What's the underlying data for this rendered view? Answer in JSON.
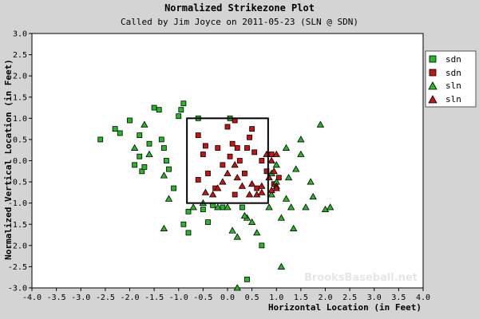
{
  "chart_data": {
    "type": "scatter",
    "title": "Normalized Strikezone Plot",
    "subtitle": "Called by Jim Joyce on 2011-05-23 (SLN @ SDN)",
    "xlabel": "Horizontal Location (in Feet)",
    "ylabel": "Normalized Vertical Location (in Feet)",
    "xlim": [
      -4.0,
      4.0
    ],
    "ylim": [
      -3.0,
      3.0
    ],
    "x_ticks": [
      "-4.0",
      "-3.5",
      "-3.0",
      "-2.5",
      "-2.0",
      "-1.5",
      "-1.0",
      "-0.5",
      "0.0",
      "0.5",
      "1.0",
      "1.5",
      "2.0",
      "2.5",
      "3.0",
      "3.5",
      "4.0"
    ],
    "y_ticks": [
      "3.0",
      "2.5",
      "2.0",
      "1.5",
      "1.0",
      "0.5",
      "0.0",
      "-0.5",
      "-1.0",
      "-1.5",
      "-2.0",
      "-2.5",
      "-3.0"
    ],
    "strike_zone": {
      "x": [
        -0.83,
        0.83
      ],
      "y": [
        -1.0,
        1.0
      ]
    },
    "grid": false,
    "legend_position": "top-right",
    "watermark": "BrooksBaseball.net",
    "series": [
      {
        "name": "sdn",
        "marker": "square",
        "color": "#22bb22",
        "points": [
          [
            -2.6,
            0.5
          ],
          [
            -2.3,
            0.75
          ],
          [
            -2.2,
            0.65
          ],
          [
            -2.0,
            0.95
          ],
          [
            -1.9,
            -0.1
          ],
          [
            -1.8,
            0.6
          ],
          [
            -1.8,
            0.1
          ],
          [
            -1.75,
            -0.25
          ],
          [
            -1.7,
            -0.15
          ],
          [
            -1.6,
            0.4
          ],
          [
            -1.5,
            1.25
          ],
          [
            -1.4,
            1.2
          ],
          [
            -1.35,
            0.5
          ],
          [
            -1.3,
            0.3
          ],
          [
            -1.25,
            0.0
          ],
          [
            -1.2,
            -0.2
          ],
          [
            -1.1,
            -0.65
          ],
          [
            -1.0,
            1.05
          ],
          [
            -0.95,
            1.2
          ],
          [
            -0.9,
            -1.5
          ],
          [
            -0.8,
            -1.7
          ],
          [
            -0.8,
            -1.2
          ],
          [
            -0.5,
            -1.15
          ],
          [
            -0.4,
            -1.45
          ],
          [
            -0.3,
            -1.05
          ],
          [
            -0.1,
            -1.1
          ],
          [
            0.05,
            1.0
          ],
          [
            0.3,
            -1.1
          ],
          [
            0.4,
            -2.8
          ],
          [
            0.7,
            -2.0
          ],
          [
            -0.9,
            1.35
          ],
          [
            -0.6,
            1.0
          ]
        ]
      },
      {
        "name": "sdn",
        "marker": "square",
        "color": "#cc1111",
        "points": [
          [
            -0.6,
            0.6
          ],
          [
            -0.5,
            0.15
          ],
          [
            -0.45,
            0.35
          ],
          [
            -0.4,
            -0.3
          ],
          [
            -0.2,
            0.3
          ],
          [
            -0.1,
            -0.1
          ],
          [
            0.0,
            0.8
          ],
          [
            0.05,
            0.1
          ],
          [
            0.1,
            0.4
          ],
          [
            0.15,
            0.95
          ],
          [
            0.2,
            0.3
          ],
          [
            0.25,
            0.0
          ],
          [
            0.35,
            -0.3
          ],
          [
            0.4,
            0.3
          ],
          [
            0.45,
            0.55
          ],
          [
            0.5,
            0.75
          ],
          [
            0.55,
            0.2
          ],
          [
            0.6,
            -0.65
          ],
          [
            0.7,
            0.0
          ],
          [
            0.8,
            -0.25
          ],
          [
            0.9,
            0.15
          ],
          [
            0.95,
            -0.55
          ],
          [
            1.05,
            -0.4
          ],
          [
            -0.6,
            -0.45
          ],
          [
            -0.25,
            -0.65
          ],
          [
            0.15,
            -0.8
          ]
        ]
      },
      {
        "name": "sln",
        "marker": "triangle",
        "color": "#22bb22",
        "points": [
          [
            -1.9,
            0.3
          ],
          [
            -1.7,
            0.85
          ],
          [
            -1.6,
            0.15
          ],
          [
            -1.3,
            -0.35
          ],
          [
            -1.2,
            -0.9
          ],
          [
            -1.3,
            -1.6
          ],
          [
            -0.7,
            -1.1
          ],
          [
            -0.5,
            -1.0
          ],
          [
            -0.2,
            -1.1
          ],
          [
            0.0,
            -1.1
          ],
          [
            0.1,
            -1.65
          ],
          [
            0.2,
            -1.8
          ],
          [
            0.4,
            -1.35
          ],
          [
            0.5,
            -1.45
          ],
          [
            0.6,
            -1.7
          ],
          [
            0.9,
            -0.8
          ],
          [
            1.0,
            -0.5
          ],
          [
            1.1,
            -1.35
          ],
          [
            1.2,
            -0.9
          ],
          [
            1.3,
            -1.1
          ],
          [
            1.4,
            -0.2
          ],
          [
            1.5,
            0.5
          ],
          [
            1.6,
            -1.1
          ],
          [
            1.7,
            -0.5
          ],
          [
            1.75,
            -0.85
          ],
          [
            1.9,
            0.85
          ],
          [
            2.0,
            -1.15
          ],
          [
            2.1,
            -1.1
          ],
          [
            1.1,
            -2.5
          ],
          [
            0.2,
            -3.0
          ],
          [
            0.85,
            -1.1
          ],
          [
            1.0,
            -0.1
          ],
          [
            1.2,
            0.3
          ],
          [
            1.25,
            -0.4
          ],
          [
            0.9,
            -0.3
          ],
          [
            1.35,
            -1.6
          ],
          [
            1.5,
            0.15
          ],
          [
            0.35,
            -1.3
          ]
        ]
      },
      {
        "name": "sln",
        "marker": "triangle",
        "color": "#cc1111",
        "points": [
          [
            -0.45,
            -0.75
          ],
          [
            -0.2,
            -0.65
          ],
          [
            -0.1,
            -0.5
          ],
          [
            0.0,
            -0.3
          ],
          [
            0.15,
            -0.1
          ],
          [
            0.2,
            -0.4
          ],
          [
            0.3,
            -0.6
          ],
          [
            0.45,
            -0.8
          ],
          [
            0.6,
            -0.8
          ],
          [
            0.7,
            -0.6
          ],
          [
            0.85,
            -0.4
          ],
          [
            0.9,
            -0.7
          ],
          [
            1.0,
            -0.6
          ],
          [
            0.8,
            0.15
          ],
          [
            1.0,
            0.15
          ],
          [
            0.9,
            0.0
          ],
          [
            -0.3,
            -0.8
          ],
          [
            0.5,
            -0.55
          ],
          [
            0.7,
            -0.75
          ],
          [
            0.95,
            -0.25
          ],
          [
            1.0,
            -0.65
          ]
        ]
      }
    ]
  }
}
